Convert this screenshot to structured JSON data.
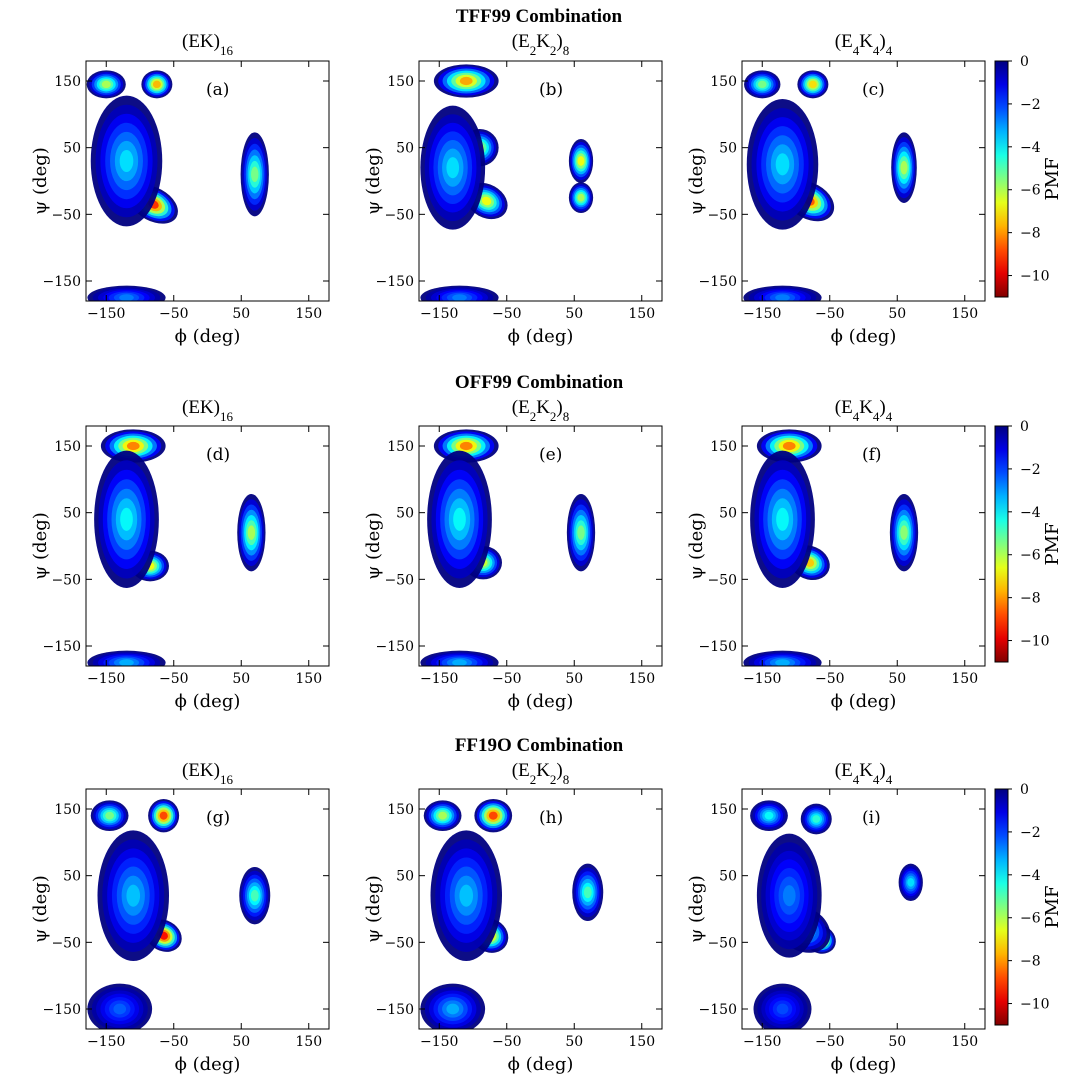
{
  "rows": [
    {
      "title": "TFF99 Combination",
      "panels": [
        {
          "title_base": "(EK)",
          "title_sub": "16",
          "label": "(a)",
          "blobs": [
            [
              -80,
              -35,
              36,
              22,
              0.84,
              -0.5
            ],
            [
              -150,
              145,
              26,
              18,
              0.55,
              0
            ],
            [
              -75,
              145,
              20,
              18,
              0.7,
              0
            ],
            [
              -120,
              30,
              50,
              95,
              0.35,
              0
            ],
            [
              70,
              10,
              18,
              60,
              0.5,
              0
            ],
            [
              -120,
              -175,
              55,
              15,
              0.25,
              0
            ]
          ]
        },
        {
          "title_base": "(E",
          "title_sub": "2",
          "title_mid": "K",
          "title_sub2": "2",
          "title_end": ")",
          "title_sub3": "8",
          "label": "(b)",
          "blobs": [
            [
              -110,
              150,
              45,
              22,
              0.72,
              0
            ],
            [
              -80,
              -30,
              30,
              22,
              0.62,
              -0.5
            ],
            [
              -90,
              50,
              25,
              25,
              0.55,
              0
            ],
            [
              -130,
              20,
              45,
              90,
              0.35,
              0
            ],
            [
              60,
              30,
              15,
              30,
              0.62,
              0
            ],
            [
              60,
              -25,
              15,
              20,
              0.55,
              0
            ],
            [
              -120,
              -175,
              55,
              15,
              0.25,
              0
            ]
          ]
        },
        {
          "title_base": "(E",
          "title_sub": "4",
          "title_mid": "K",
          "title_sub2": "4",
          "title_end": ")",
          "title_sub3": "4",
          "label": "(c)",
          "blobs": [
            [
              -80,
              -30,
              36,
              24,
              0.8,
              -0.5
            ],
            [
              -75,
              145,
              20,
              18,
              0.66,
              0
            ],
            [
              -150,
              145,
              24,
              18,
              0.5,
              0
            ],
            [
              -120,
              25,
              50,
              95,
              0.35,
              0
            ],
            [
              60,
              20,
              16,
              50,
              0.55,
              0
            ],
            [
              -120,
              -175,
              55,
              15,
              0.25,
              0
            ]
          ]
        }
      ]
    },
    {
      "title": "OFF99 Combination",
      "panels": [
        {
          "title_base": "(EK)",
          "title_sub": "16",
          "label": "(d)",
          "blobs": [
            [
              -110,
              150,
              45,
              22,
              0.76,
              0
            ],
            [
              -85,
              -30,
              25,
              20,
              0.62,
              0
            ],
            [
              -120,
              40,
              45,
              100,
              0.38,
              0
            ],
            [
              65,
              20,
              18,
              55,
              0.55,
              0
            ],
            [
              -120,
              -175,
              55,
              15,
              0.3,
              0
            ]
          ]
        },
        {
          "title_base": "(E",
          "title_sub": "2",
          "title_mid": "K",
          "title_sub2": "2",
          "title_end": ")",
          "title_sub3": "8",
          "label": "(e)",
          "blobs": [
            [
              -110,
              150,
              45,
              22,
              0.76,
              0
            ],
            [
              -85,
              -25,
              25,
              22,
              0.58,
              0
            ],
            [
              -120,
              40,
              45,
              100,
              0.38,
              0
            ],
            [
              60,
              20,
              18,
              55,
              0.5,
              0
            ],
            [
              -120,
              -175,
              55,
              15,
              0.3,
              0
            ]
          ]
        },
        {
          "title_base": "(E",
          "title_sub": "4",
          "title_mid": "K",
          "title_sub2": "4",
          "title_end": ")",
          "title_sub3": "4",
          "label": "(f)",
          "blobs": [
            [
              -110,
              150,
              45,
              22,
              0.76,
              0
            ],
            [
              -80,
              -25,
              28,
              22,
              0.68,
              -0.4
            ],
            [
              -120,
              40,
              45,
              100,
              0.38,
              0
            ],
            [
              60,
              20,
              18,
              55,
              0.52,
              0
            ],
            [
              -120,
              -175,
              55,
              15,
              0.3,
              0
            ]
          ]
        }
      ]
    },
    {
      "title": "FF19O Combination",
      "panels": [
        {
          "title_base": "(EK)",
          "title_sub": "16",
          "label": "(g)",
          "blobs": [
            [
              -65,
              -40,
              25,
              20,
              0.88,
              -0.5
            ],
            [
              -65,
              140,
              20,
              22,
              0.82,
              0
            ],
            [
              -145,
              140,
              25,
              20,
              0.5,
              0
            ],
            [
              -110,
              20,
              50,
              95,
              0.32,
              0
            ],
            [
              70,
              20,
              20,
              40,
              0.45,
              0
            ],
            [
              -130,
              -150,
              45,
              35,
              0.22,
              0
            ]
          ]
        },
        {
          "title_base": "(E",
          "title_sub": "2",
          "title_mid": "K",
          "title_sub2": "2",
          "title_end": ")",
          "title_sub3": "8",
          "label": "(h)",
          "blobs": [
            [
              -70,
              140,
              25,
              22,
              0.82,
              0
            ],
            [
              -75,
              -40,
              25,
              22,
              0.7,
              -0.5
            ],
            [
              -145,
              140,
              25,
              20,
              0.55,
              0
            ],
            [
              -110,
              20,
              50,
              95,
              0.32,
              0
            ],
            [
              70,
              25,
              20,
              40,
              0.45,
              0
            ],
            [
              -130,
              -150,
              45,
              35,
              0.3,
              0
            ]
          ]
        },
        {
          "title_base": "(E",
          "title_sub": "4",
          "title_mid": "K",
          "title_sub2": "4",
          "title_end": ")",
          "title_sub3": "4",
          "label": "(i)",
          "blobs": [
            [
              -65,
              -45,
              22,
              18,
              0.92,
              -0.5
            ],
            [
              -90,
              -30,
              40,
              30,
              0.45,
              -0.5
            ],
            [
              -140,
              140,
              25,
              20,
              0.38,
              0
            ],
            [
              -70,
              135,
              20,
              20,
              0.42,
              0
            ],
            [
              -110,
              20,
              45,
              90,
              0.25,
              0
            ],
            [
              70,
              40,
              15,
              25,
              0.35,
              0
            ],
            [
              -120,
              -150,
              40,
              35,
              0.2,
              0
            ]
          ]
        }
      ]
    }
  ],
  "axes": {
    "xlabel": "ϕ (deg)",
    "ylabel": "ψ (deg)",
    "xlim": [
      -180,
      180
    ],
    "ylim": [
      -180,
      180
    ],
    "xticks": [
      "−150",
      "−50",
      "50",
      "150"
    ],
    "yticks": [
      "150",
      "50",
      "−50",
      "−150"
    ]
  },
  "colorbar": {
    "label": "PMF",
    "ticks": [
      "0",
      "−2",
      "−4",
      "−6",
      "−8",
      "−10"
    ],
    "min": -11,
    "max": 0
  },
  "chart_data": {
    "type": "heatmap",
    "description_of_grid": "3x3 grid of Ramachandran PMF maps",
    "xlabel": "ϕ (deg)",
    "ylabel": "ψ (deg)",
    "xlim": [
      -180,
      180
    ],
    "ylim": [
      -180,
      180
    ],
    "colorbar_label": "PMF",
    "colorbar_range": [
      -11,
      0
    ],
    "panels": [
      "(a)",
      "(b)",
      "(c)",
      "(d)",
      "(e)",
      "(f)",
      "(g)",
      "(h)",
      "(i)"
    ]
  }
}
